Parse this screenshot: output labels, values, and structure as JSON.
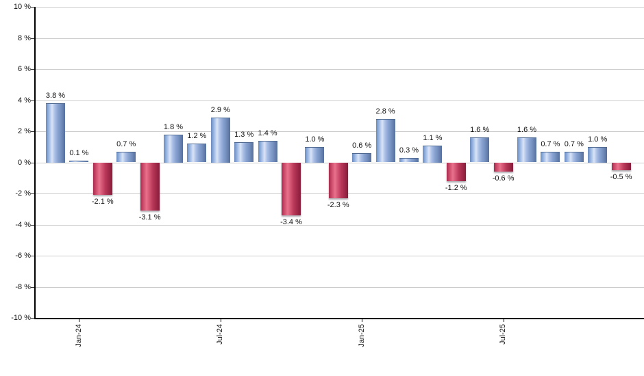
{
  "chart_data": {
    "type": "bar",
    "title": "",
    "xlabel": "",
    "ylabel": "",
    "unit": "%",
    "ylim": [
      -10,
      10
    ],
    "y_step": 2,
    "grid": "horizontal",
    "legend": "none",
    "values": [
      3.8,
      0.1,
      -2.1,
      0.7,
      -3.1,
      1.8,
      1.2,
      2.9,
      1.3,
      1.4,
      -3.4,
      1.0,
      -2.3,
      0.6,
      2.8,
      0.3,
      1.1,
      -1.2,
      1.6,
      -0.6,
      1.6,
      0.7,
      0.7,
      1.0,
      -0.5
    ],
    "bar_labels": [
      "3.8 %",
      "0.1 %",
      "-2.1 %",
      "0.7 %",
      "-3.1 %",
      "1.8 %",
      "1.2 %",
      "2.9 %",
      "1.3 %",
      "1.4 %",
      "-3.4 %",
      "1.0 %",
      "-2.3 %",
      "0.6 %",
      "2.8 %",
      "0.3 %",
      "1.1 %",
      "-1.2 %",
      "1.6 %",
      "-0.6 %",
      "1.6 %",
      "0.7 %",
      "0.7 %",
      "1.0 %",
      "-0.5 %"
    ],
    "positive_color": "#7f9bcc",
    "negative_color": "#c04263",
    "gridline_color": "#cccccc",
    "axis_color": "#000000",
    "label_color": "#111111"
  },
  "y_axis": {
    "ticks": [
      {
        "label": "10 %",
        "value": 10
      },
      {
        "label": "8 %",
        "value": 8
      },
      {
        "label": "6 %",
        "value": 6
      },
      {
        "label": "4 %",
        "value": 4
      },
      {
        "label": "2 %",
        "value": 2
      },
      {
        "label": "0 %",
        "value": 0
      },
      {
        "label": "-2 %",
        "value": -2
      },
      {
        "label": "-4 %",
        "value": -4
      },
      {
        "label": "-6 %",
        "value": -6
      },
      {
        "label": "-8 %",
        "value": -8
      },
      {
        "label": "-10 %",
        "value": -10
      }
    ]
  },
  "x_axis": {
    "ticks": [
      {
        "label": "Jan-24",
        "bar_index": 1
      },
      {
        "label": "Jul-24",
        "bar_index": 7
      },
      {
        "label": "Jan-25",
        "bar_index": 13
      },
      {
        "label": "Jul-25",
        "bar_index": 19
      }
    ]
  }
}
